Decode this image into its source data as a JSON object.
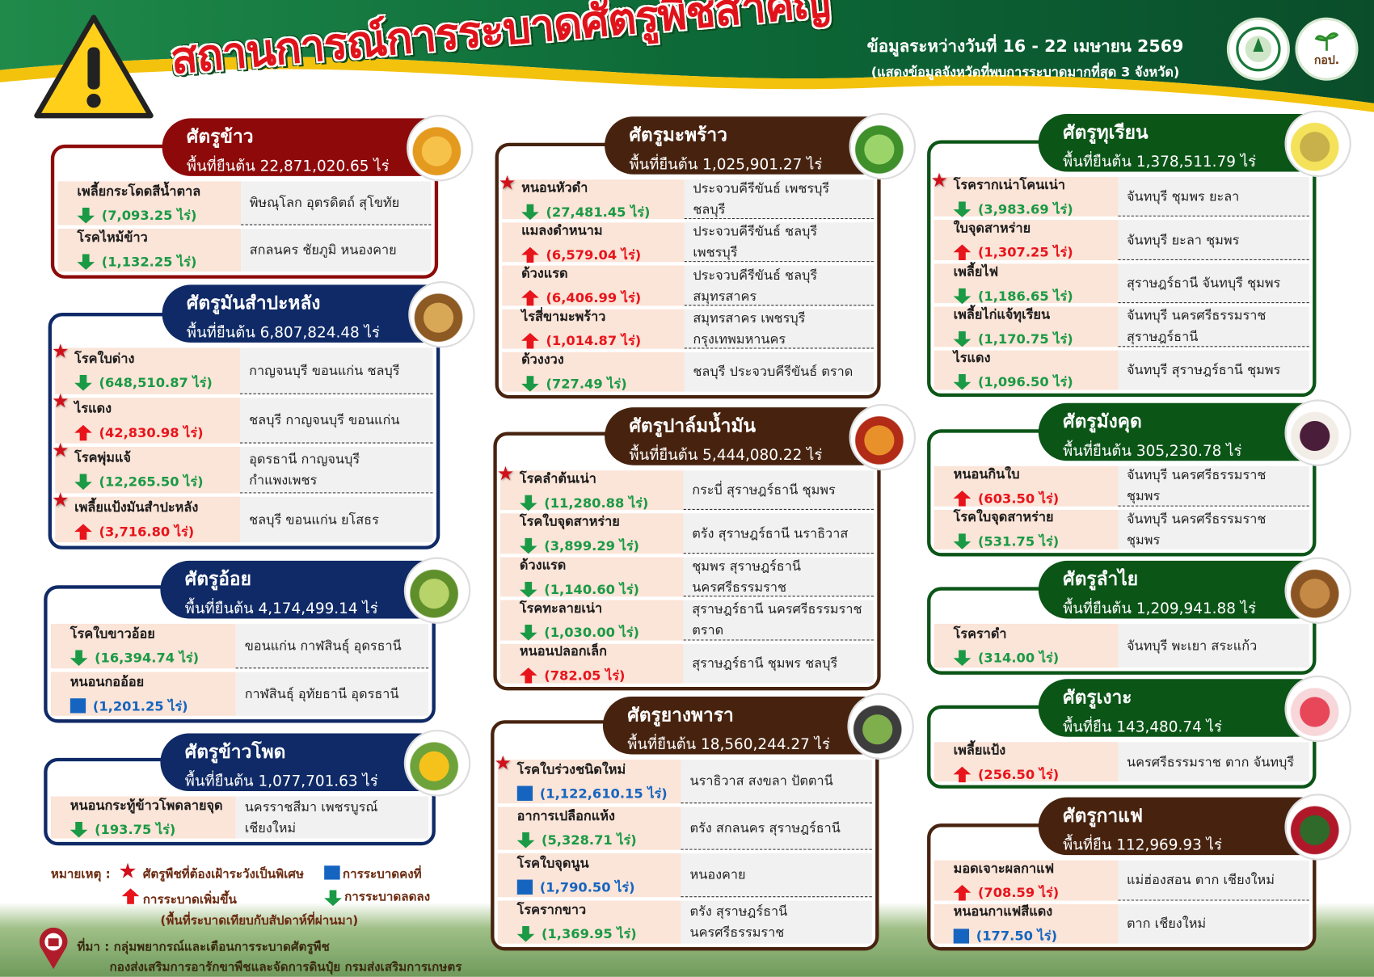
{
  "header": {
    "title": "สถานการณ์การระบาดศัตรูพืชสำคัญ",
    "date_range": "ข้อมูลระหว่างวันที่ 16 - 22 เมษายน 2569",
    "subtitle": "(แสดงข้อมูลจังหวัดที่พบการระบาดมากที่สุด 3 จังหวัด)",
    "logo2_text": "กอป.",
    "icon": "warning-triangle-icon"
  },
  "colors": {
    "up": "#e8141b",
    "down": "#1a9a45",
    "stable": "#1565c0",
    "red_card": "#8e0a0a",
    "navy_card": "#0f2a66",
    "brown_card": "#47230f",
    "green_card": "#0b5517"
  },
  "cards": [
    {
      "id": "rice",
      "title": "ศัตรูข้าว",
      "area": "พื้นที่ยืนต้น 22,871,020.65  ไร่",
      "pests": [
        {
          "name": "เพลี้ยกระโดดสีน้ำตาล",
          "trend": "down",
          "amount": "(7,093.25 ไร่)",
          "provinces": "พิษณุโลก อุตรดิตถ์ สุโขทัย",
          "watch": false
        },
        {
          "name": "โรคไหม้ข้าว",
          "trend": "down",
          "amount": "(1,132.25 ไร่)",
          "provinces": "สกลนคร ชัยภูมิ หนองคาย",
          "watch": false
        }
      ]
    },
    {
      "id": "cassava",
      "title": "ศัตรูมันสำปะหลัง",
      "area": "พื้นที่ยืนต้น 6,807,824.48 ไร่",
      "pests": [
        {
          "name": "โรคใบด่าง",
          "trend": "down",
          "amount": "(648,510.87 ไร่)",
          "provinces": "กาญจนบุรี ขอนแก่น ชลบุรี",
          "watch": true
        },
        {
          "name": "ไรแดง",
          "trend": "up",
          "amount": "(42,830.98 ไร่)",
          "provinces": "ชลบุรี กาญจนบุรี ขอนแก่น",
          "watch": true
        },
        {
          "name": "โรคพุ่มแจ้",
          "trend": "down",
          "amount": "(12,265.50 ไร่)",
          "provinces": "อุดรธานี กาญจนบุรี กำแพงเพชร",
          "watch": true
        },
        {
          "name": "เพลี้ยแป้งมันสำปะหลัง",
          "trend": "up",
          "amount": "(3,716.80 ไร่)",
          "provinces": "ชลบุรี ขอนแก่น ยโสธร",
          "watch": true
        }
      ]
    },
    {
      "id": "sugarcane",
      "title": "ศัตรูอ้อย",
      "area": "พื้นที่ยืนต้น 4,174,499.14  ไร่",
      "pests": [
        {
          "name": "โรคใบขาวอ้อย",
          "trend": "down",
          "amount": "(16,394.74 ไร่)",
          "provinces": "ขอนแก่น กาฬสินธุ์ อุดรธานี",
          "watch": false
        },
        {
          "name": "หนอนกออ้อย",
          "trend": "stable",
          "amount": "(1,201.25 ไร่)",
          "provinces": "กาฬสินธุ์ อุทัยธานี  อุดรธานี",
          "watch": false
        }
      ]
    },
    {
      "id": "corn",
      "title": "ศัตรูข้าวโพด",
      "area": "พื้นที่ยืนต้น 1,077,701.63  ไร่",
      "pests": [
        {
          "name": "หนอนกระทู้ข้าวโพดลายจุด",
          "trend": "down",
          "amount": "(193.75 ไร่)",
          "provinces": "นครราชสีมา เพชรบูรณ์ เชียงใหม่",
          "watch": false
        }
      ]
    },
    {
      "id": "coconut",
      "title": "ศัตรูมะพร้าว",
      "area": "พื้นที่ยืนต้น 1,025,901.27 ไร่",
      "pests": [
        {
          "name": "หนอนหัวดำ",
          "trend": "down",
          "amount": "(27,481.45 ไร่)",
          "provinces": "ประจวบคีรีขันธ์ เพชรบุรี ชลบุรี",
          "watch": true
        },
        {
          "name": "แมลงดำหนาม",
          "trend": "up",
          "amount": "(6,579.04 ไร่)",
          "provinces": "ประจวบคีรีขันธ์ ชลบุรี เพชรบุรี",
          "watch": false
        },
        {
          "name": "ด้วงแรด",
          "trend": "up",
          "amount": "(6,406.99 ไร่)",
          "provinces": "ประจวบคีรีขันธ์ ชลบุรี สมุทรสาคร",
          "watch": false
        },
        {
          "name": "ไรสี่ขามะพร้าว",
          "trend": "up",
          "amount": "(1,014.87 ไร่)",
          "provinces": "สมุทรสาคร เพชรบุรี กรุงเทพมหานคร",
          "watch": false
        },
        {
          "name": "ด้วงงวง",
          "trend": "down",
          "amount": "(727.49 ไร่)",
          "provinces": "ชลบุรี ประจวบคีรีขันธ์ ตราด",
          "watch": false
        }
      ]
    },
    {
      "id": "palm",
      "title": "ศัตรูปาล์มน้ำมัน",
      "area": "พื้นที่ยืนต้น 5,444,080.22  ไร่",
      "pests": [
        {
          "name": "โรคลำต้นเน่า",
          "trend": "down",
          "amount": "(11,280.88 ไร่)",
          "provinces": "กระบี่ สุราษฎร์ธานี ชุมพร",
          "watch": true
        },
        {
          "name": "โรคใบจุดสาหร่าย",
          "trend": "down",
          "amount": "(3,899.29 ไร่)",
          "provinces": "ตรัง สุราษฎร์ธานี นราธิวาส",
          "watch": false
        },
        {
          "name": "ด้วงแรด",
          "trend": "down",
          "amount": "(1,140.60 ไร่)",
          "provinces": "ชุมพร สุราษฎร์ธานี นครศรีธรรมราช",
          "watch": false
        },
        {
          "name": "โรคทะลายเน่า",
          "trend": "down",
          "amount": "(1,030.00 ไร่)",
          "provinces": "สุราษฎร์ธานี นครศรีธรรมราช ตราด",
          "watch": false
        },
        {
          "name": "หนอนปลอกเล็ก",
          "trend": "up",
          "amount": "(782.05  ไร่)",
          "provinces": "สุราษฎร์ธานี ชุมพร ชลบุรี",
          "watch": false
        }
      ]
    },
    {
      "id": "rubber",
      "title": "ศัตรูยางพารา",
      "area": "พื้นที่ยืนต้น 18,560,244.27  ไร่",
      "pests": [
        {
          "name": "โรคใบร่วงชนิดใหม่",
          "trend": "stable",
          "amount": "(1,122,610.15 ไร่)",
          "provinces": "นราธิวาส สงขลา ปัตตานี",
          "watch": true
        },
        {
          "name": "อาการเปลือกแห้ง",
          "trend": "down",
          "amount": "(5,328.71 ไร่)",
          "provinces": "ตรัง สกลนคร สุราษฎร์ธานี",
          "watch": false
        },
        {
          "name": "โรคใบจุดนูน",
          "trend": "stable",
          "amount": "(1,790.50 ไร่)",
          "provinces": "หนองคาย",
          "watch": false
        },
        {
          "name": "โรครากขาว",
          "trend": "down",
          "amount": "(1,369.95 ไร่)",
          "provinces": "ตรัง สุราษฎร์ธานี นครศรีธรรมราช",
          "watch": false
        }
      ]
    },
    {
      "id": "durian",
      "title": "ศัตรูทุเรียน",
      "area": "พื้นที่ยืนต้น 1,378,511.79  ไร่",
      "pests": [
        {
          "name": "โรครากเน่าโคนเน่า",
          "trend": "down",
          "amount": "(3,983.69 ไร่)",
          "provinces": "จันทบุรี ชุมพร ยะลา",
          "watch": true
        },
        {
          "name": "ใบจุดสาหร่าย",
          "trend": "up",
          "amount": "(1,307.25 ไร่)",
          "provinces": "จันทบุรี ยะลา ชุมพร",
          "watch": false
        },
        {
          "name": "เพลี้ยไฟ",
          "trend": "down",
          "amount": "(1,186.65 ไร่)",
          "provinces": "สุราษฎร์ธานี จันทบุรี ชุมพร",
          "watch": false
        },
        {
          "name": "เพลี้ยไก่แจ้ทุเรียน",
          "trend": "down",
          "amount": "(1,170.75 ไร่)",
          "provinces": "จันทบุรี นครศรีธรรมราช สุราษฎร์ธานี",
          "watch": false
        },
        {
          "name": "ไรแดง",
          "trend": "down",
          "amount": "(1,096.50 ไร่)",
          "provinces": "จันทบุรี สุราษฎร์ธานี ชุมพร",
          "watch": false
        }
      ]
    },
    {
      "id": "mangosteen",
      "title": "ศัตรูมังคุด",
      "area": "พื้นที่ยืนต้น 305,230.78  ไร่",
      "pests": [
        {
          "name": "หนอนกินใบ",
          "trend": "up",
          "amount": "(603.50 ไร่)",
          "provinces": "จันทบุรี นครศรีธรรมราช ชุมพร",
          "watch": false
        },
        {
          "name": "โรคใบจุดสาหร่าย",
          "trend": "down",
          "amount": "(531.75 ไร่)",
          "provinces": "จันทบุรี นครศรีธรรมราช ชุมพร",
          "watch": false
        }
      ]
    },
    {
      "id": "longan",
      "title": "ศัตรูลำไย",
      "area": "พื้นที่ยืนต้น 1,209,941.88  ไร่",
      "pests": [
        {
          "name": "โรคราดำ",
          "trend": "down",
          "amount": "(314.00 ไร่)",
          "provinces": "จันทบุรี พะเยา สระแก้ว",
          "watch": false
        }
      ]
    },
    {
      "id": "rambutan",
      "title": "ศัตรูเงาะ",
      "area": "พื้นที่ยืน 143,480.74  ไร่",
      "pests": [
        {
          "name": "เพลี้ยแป้ง",
          "trend": "up",
          "amount": "(256.50 ไร่)",
          "provinces": "นครศรีธรรมราช ตาก จันทบุรี",
          "watch": false
        }
      ]
    },
    {
      "id": "coffee",
      "title": "ศัตรูกาแฟ",
      "area": "พื้นที่ยืน 112,969.93   ไร่",
      "pests": [
        {
          "name": "มอดเจาะผลกาแฟ",
          "trend": "up",
          "amount": "(708.59 ไร่)",
          "provinces": "แม่ฮ่องสอน ตาก เชียงใหม่",
          "watch": false
        },
        {
          "name": "หนอนกาแฟสีแดง",
          "trend": "stable",
          "amount": "(177.50 ไร่)",
          "provinces": "ตาก เชียงใหม่",
          "watch": false
        }
      ]
    }
  ],
  "legend": {
    "label": "หมายเหตุ :",
    "watch": "ศัตรูพืชที่ต้องเฝ้าระวังเป็นพิเศษ",
    "stable": "การระบาดคงที่",
    "up": "การระบาดเพิ่มขึ้น",
    "down": "การระบาดลดลง",
    "note": "(พื้นที่ระบาดเทียบกับสัปดาห์ที่ผ่านมา)"
  },
  "source": {
    "line1": "ที่มา : กลุ่มพยากรณ์และเตือนการระบาดศัตรูพืช",
    "line2": "กองส่งเสริมการอารักขาพืชและจัดการดินปุ๋ย  กรมส่งเสริมการเกษตร"
  }
}
